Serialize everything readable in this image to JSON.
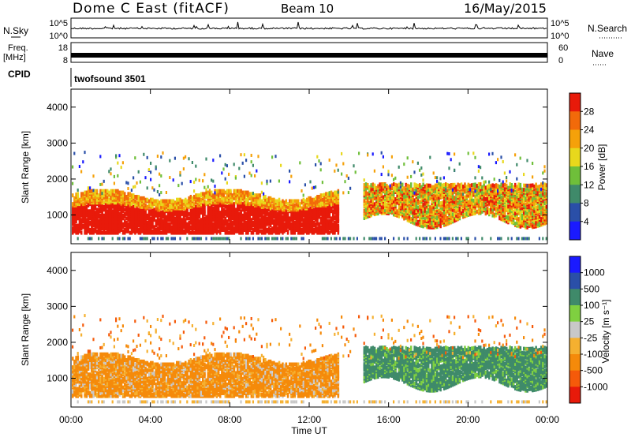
{
  "header": {
    "title": "Dome C East (fitACF)",
    "beam": "Beam 10",
    "date": "16/May/2015"
  },
  "top_panels": {
    "nsky_label": "N.Sky",
    "nsearch_label": "N.Search",
    "nsky_ticks": [
      "10^5",
      "10^0"
    ],
    "nsearch_ticks": [
      "10^5",
      "10^0"
    ],
    "freq_label_1": "Freq.",
    "freq_label_2": "[MHz]",
    "freq_ticks": [
      "18",
      "8"
    ],
    "nave_label": "Nave",
    "nave_ticks": [
      "60",
      "0"
    ],
    "cpid_label": "CPID",
    "cpid_text": "twofsound 3501"
  },
  "colors": {
    "power": [
      "#1a1aff",
      "#2a4fa8",
      "#3f8a6a",
      "#6fbf3a",
      "#e8d81c",
      "#f5a10a",
      "#f26a0a",
      "#e81a0a"
    ],
    "velocity": [
      "#e81a0a",
      "#f55a0a",
      "#f58a0a",
      "#f5b030",
      "#c8c8c8",
      "#7fd040",
      "#3f8a6a",
      "#2a4fa8",
      "#1a1aff"
    ]
  },
  "chart_data": [
    {
      "type": "heatmap",
      "name": "power",
      "ylabel": "Slant Range [km]",
      "y_ticks": [
        "4000",
        "3000",
        "2000",
        "1000"
      ],
      "ylim": [
        200,
        4500
      ],
      "x_ticks": [
        "00:00",
        "04:00",
        "08:00",
        "12:00",
        "16:00",
        "20:00",
        "00:00"
      ],
      "xlim_hours": [
        0,
        24
      ],
      "colorbar_label": "Power [dB]",
      "colorbar_ticks": [
        "28",
        "24",
        "20",
        "16",
        "12",
        "8",
        "4"
      ],
      "colorbar_range": [
        0,
        30
      ]
    },
    {
      "type": "heatmap",
      "name": "velocity",
      "ylabel": "Slant Range [km]",
      "y_ticks": [
        "4000",
        "3000",
        "2000",
        "1000"
      ],
      "ylim": [
        200,
        4500
      ],
      "x_ticks": [
        "00:00",
        "04:00",
        "08:00",
        "12:00",
        "16:00",
        "20:00",
        "00:00"
      ],
      "xlabel": "Time UT",
      "colorbar_label": "Velocity [m s⁻¹]",
      "colorbar_ticks": [
        "1000",
        "500",
        "100",
        "25",
        "-25",
        "-100",
        "-500",
        "-1000"
      ]
    }
  ]
}
